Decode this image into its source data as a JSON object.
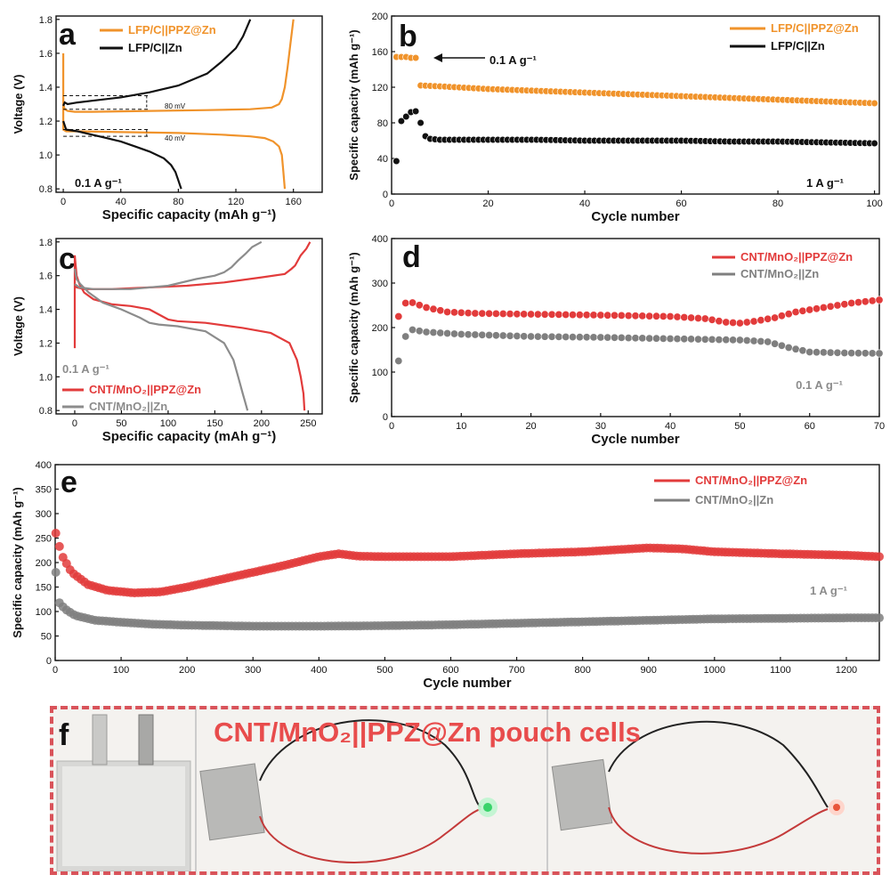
{
  "chart_data": [
    {
      "panel": "a",
      "type": "line",
      "xlabel": "Specific capacity (mAh g⁻¹)",
      "ylabel": "Voltage (V)",
      "xlim": [
        -5,
        180
      ],
      "ylim": [
        0.78,
        1.82
      ],
      "xticks": [
        0,
        40,
        80,
        120,
        160
      ],
      "yticks": [
        0.8,
        1.0,
        1.2,
        1.4,
        1.6,
        1.8
      ],
      "legend": "top-left",
      "rate_label": "0.1 A g⁻¹",
      "annotations": [
        "80 mV",
        "40 mV"
      ],
      "series": [
        {
          "name": "LFP/C||PPZ@Zn",
          "color": "#f0932b",
          "segments": [
            {
              "x": [
                0,
                1,
                3,
                8,
                20,
                60,
                100,
                130,
                145,
                150,
                152,
                154,
                156,
                158,
                160
              ],
              "y": [
                1.3,
                1.27,
                1.26,
                1.255,
                1.255,
                1.26,
                1.265,
                1.27,
                1.28,
                1.3,
                1.33,
                1.4,
                1.52,
                1.66,
                1.8
              ]
            },
            {
              "x": [
                0,
                0,
                2,
                10,
                40,
                80,
                110,
                130,
                140,
                146,
                150,
                152,
                153,
                154
              ],
              "y": [
                1.6,
                1.15,
                1.14,
                1.14,
                1.135,
                1.13,
                1.12,
                1.11,
                1.1,
                1.08,
                1.05,
                1.0,
                0.9,
                0.8
              ]
            }
          ]
        },
        {
          "name": "LFP/C||Zn",
          "color": "#111111",
          "segments": [
            {
              "x": [
                0,
                1,
                3,
                10,
                20,
                40,
                60,
                80,
                100,
                110,
                120,
                125,
                130
              ],
              "y": [
                1.29,
                1.31,
                1.3,
                1.31,
                1.32,
                1.34,
                1.37,
                1.41,
                1.48,
                1.55,
                1.63,
                1.7,
                1.8
              ]
            },
            {
              "x": [
                0,
                2,
                10,
                20,
                30,
                40,
                50,
                60,
                70,
                75,
                78,
                80,
                82
              ],
              "y": [
                1.2,
                1.15,
                1.14,
                1.12,
                1.1,
                1.08,
                1.05,
                1.02,
                0.98,
                0.94,
                0.9,
                0.85,
                0.8
              ]
            }
          ]
        }
      ]
    },
    {
      "panel": "b",
      "type": "scatter",
      "xlabel": "Cycle number",
      "ylabel": "Specific capacity (mAh g⁻¹)",
      "xlim": [
        0,
        101
      ],
      "ylim": [
        0,
        200
      ],
      "xticks": [
        0,
        20,
        40,
        60,
        80,
        100
      ],
      "yticks": [
        0,
        40,
        80,
        120,
        160,
        200
      ],
      "legend": "top-right",
      "rate_label": "1 A g⁻¹",
      "annotation": "0.1 A g⁻¹",
      "series": [
        {
          "name": "LFP/C||PPZ@Zn",
          "color": "#f0932b",
          "points": [
            [
              1,
              154
            ],
            [
              2,
              154
            ],
            [
              3,
              154
            ],
            [
              4,
              153
            ],
            [
              5,
              153
            ],
            [
              6,
              122
            ],
            [
              10,
              121
            ],
            [
              20,
              118
            ],
            [
              30,
              116
            ],
            [
              40,
              114
            ],
            [
              50,
              112
            ],
            [
              60,
              110
            ],
            [
              70,
              108
            ],
            [
              80,
              106
            ],
            [
              90,
              104
            ],
            [
              100,
              102
            ]
          ]
        },
        {
          "name": "LFP/C||Zn",
          "color": "#111111",
          "points": [
            [
              1,
              37
            ],
            [
              2,
              82
            ],
            [
              3,
              87
            ],
            [
              4,
              92
            ],
            [
              5,
              93
            ],
            [
              6,
              80
            ],
            [
              7,
              65
            ],
            [
              8,
              62
            ],
            [
              10,
              61
            ],
            [
              20,
              61
            ],
            [
              30,
              61
            ],
            [
              40,
              60
            ],
            [
              50,
              60
            ],
            [
              60,
              60
            ],
            [
              70,
              59
            ],
            [
              80,
              59
            ],
            [
              90,
              58
            ],
            [
              100,
              57
            ]
          ]
        }
      ]
    },
    {
      "panel": "c",
      "type": "line",
      "xlabel": "Specific capacity (mAh g⁻¹)",
      "ylabel": "Voltage (V)",
      "xlim": [
        -20,
        265
      ],
      "ylim": [
        0.78,
        1.82
      ],
      "xticks": [
        0,
        50,
        100,
        150,
        200,
        250
      ],
      "yticks": [
        0.8,
        1.0,
        1.2,
        1.4,
        1.6,
        1.8
      ],
      "legend": "bottom-left",
      "rate_label": "0.1 A g⁻¹",
      "series": [
        {
          "name": "CNT/MnO₂||PPZ@Zn",
          "color": "#e23b3b",
          "segments": [
            {
              "x": [
                0,
                2,
                10,
                40,
                80,
                120,
                160,
                200,
                225,
                232,
                236,
                242,
                248,
                252
              ],
              "y": [
                1.54,
                1.53,
                1.52,
                1.52,
                1.53,
                1.54,
                1.56,
                1.59,
                1.61,
                1.64,
                1.66,
                1.72,
                1.76,
                1.8
              ]
            },
            {
              "x": [
                0,
                0,
                2,
                5,
                10,
                20,
                40,
                60,
                80,
                100,
                110,
                140,
                180,
                210,
                230,
                238,
                242,
                245,
                246
              ],
              "y": [
                1.17,
                1.72,
                1.6,
                1.55,
                1.5,
                1.46,
                1.43,
                1.42,
                1.4,
                1.34,
                1.33,
                1.32,
                1.29,
                1.26,
                1.2,
                1.1,
                1.0,
                0.9,
                0.8
              ]
            }
          ]
        },
        {
          "name": "CNT/MnO₂||Zn",
          "color": "#8c8c8c",
          "segments": [
            {
              "x": [
                0,
                5,
                20,
                60,
                100,
                130,
                150,
                160,
                168,
                175,
                183,
                190,
                200
              ],
              "y": [
                1.55,
                1.53,
                1.52,
                1.52,
                1.54,
                1.58,
                1.6,
                1.62,
                1.65,
                1.69,
                1.73,
                1.77,
                1.8
              ]
            },
            {
              "x": [
                0,
                2,
                6,
                15,
                30,
                50,
                70,
                80,
                90,
                110,
                140,
                160,
                170,
                175,
                180,
                183,
                185
              ],
              "y": [
                1.64,
                1.58,
                1.55,
                1.5,
                1.44,
                1.4,
                1.35,
                1.32,
                1.31,
                1.3,
                1.27,
                1.2,
                1.1,
                1.0,
                0.9,
                0.84,
                0.8
              ]
            }
          ]
        }
      ]
    },
    {
      "panel": "d",
      "type": "scatter",
      "xlabel": "Cycle number",
      "ylabel": "Specific capacity (mAh g⁻¹)",
      "xlim": [
        0,
        70
      ],
      "ylim": [
        0,
        400
      ],
      "xticks": [
        0,
        10,
        20,
        30,
        40,
        50,
        60,
        70
      ],
      "yticks": [
        0,
        100,
        200,
        300,
        400
      ],
      "legend": "top-right",
      "rate_label": "0.1 A g⁻¹",
      "series": [
        {
          "name": "CNT/MnO₂||PPZ@Zn",
          "color": "#e23b3b",
          "points": [
            [
              1,
              225
            ],
            [
              2,
              255
            ],
            [
              3,
              256
            ],
            [
              5,
              245
            ],
            [
              8,
              235
            ],
            [
              12,
              232
            ],
            [
              20,
              230
            ],
            [
              30,
              228
            ],
            [
              40,
              225
            ],
            [
              45,
              220
            ],
            [
              48,
              212
            ],
            [
              50,
              210
            ],
            [
              52,
              214
            ],
            [
              55,
              222
            ],
            [
              58,
              235
            ],
            [
              62,
              245
            ],
            [
              66,
              255
            ],
            [
              70,
              262
            ]
          ]
        },
        {
          "name": "CNT/MnO₂||Zn",
          "color": "#7f7f7f",
          "points": [
            [
              1,
              125
            ],
            [
              2,
              180
            ],
            [
              3,
              195
            ],
            [
              5,
              190
            ],
            [
              10,
              185
            ],
            [
              20,
              180
            ],
            [
              30,
              178
            ],
            [
              40,
              175
            ],
            [
              50,
              172
            ],
            [
              54,
              168
            ],
            [
              57,
              155
            ],
            [
              60,
              145
            ],
            [
              65,
              143
            ],
            [
              70,
              142
            ]
          ]
        }
      ]
    },
    {
      "panel": "e",
      "type": "scatter",
      "xlabel": "Cycle number",
      "ylabel": "Specific capacity (mAh g⁻¹)",
      "xlim": [
        0,
        1250
      ],
      "ylim": [
        0,
        400
      ],
      "xticks": [
        0,
        100,
        200,
        300,
        400,
        500,
        600,
        700,
        800,
        900,
        1000,
        1100,
        1200
      ],
      "yticks": [
        0,
        50,
        100,
        150,
        200,
        250,
        300,
        350,
        400
      ],
      "legend": "top-right",
      "rate_label": "1 A g⁻¹",
      "series": [
        {
          "name": "CNT/MnO₂||PPZ@Zn",
          "color": "#e23b3b",
          "points": [
            [
              1,
              260
            ],
            [
              10,
              215
            ],
            [
              25,
              180
            ],
            [
              50,
              155
            ],
            [
              80,
              143
            ],
            [
              120,
              138
            ],
            [
              160,
              140
            ],
            [
              200,
              150
            ],
            [
              250,
              165
            ],
            [
              300,
              180
            ],
            [
              350,
              195
            ],
            [
              400,
              212
            ],
            [
              430,
              218
            ],
            [
              460,
              213
            ],
            [
              500,
              212
            ],
            [
              600,
              212
            ],
            [
              700,
              218
            ],
            [
              800,
              222
            ],
            [
              900,
              230
            ],
            [
              950,
              228
            ],
            [
              1000,
              222
            ],
            [
              1100,
              218
            ],
            [
              1200,
              215
            ],
            [
              1250,
              212
            ]
          ]
        },
        {
          "name": "CNT/MnO₂||Zn",
          "color": "#7f7f7f",
          "points": [
            [
              1,
              180
            ],
            [
              5,
              120
            ],
            [
              15,
              105
            ],
            [
              30,
              92
            ],
            [
              60,
              82
            ],
            [
              100,
              78
            ],
            [
              150,
              74
            ],
            [
              200,
              72
            ],
            [
              300,
              70
            ],
            [
              400,
              70
            ],
            [
              500,
              71
            ],
            [
              600,
              73
            ],
            [
              700,
              76
            ],
            [
              800,
              79
            ],
            [
              900,
              82
            ],
            [
              1000,
              85
            ],
            [
              1100,
              86
            ],
            [
              1200,
              87
            ],
            [
              1250,
              87
            ]
          ]
        }
      ]
    }
  ],
  "panel_f": {
    "letter": "f",
    "title": "CNT/MnO₂||PPZ@Zn pouch cells"
  },
  "colors": {
    "orange": "#f0932b",
    "black": "#111111",
    "red": "#e23b3b",
    "gray": "#7f7f7f",
    "frame": "#d9535a"
  }
}
